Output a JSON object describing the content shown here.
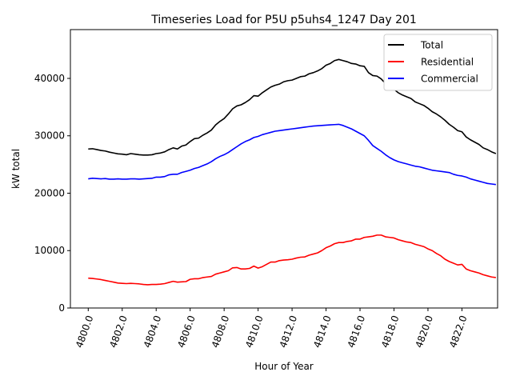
{
  "chart_data": {
    "type": "line",
    "title": "Timeseries Load for P5U p5uhs4_1247  Day 201",
    "xlabel": "Hour of Year",
    "ylabel": "kW total",
    "xlim": [
      4798.95,
      4824.1
    ],
    "ylim": [
      0,
      48500
    ],
    "x_ticks": [
      4800,
      4802,
      4804,
      4806,
      4808,
      4810,
      4812,
      4814,
      4816,
      4818,
      4820,
      4822
    ],
    "x_tick_labels": [
      "4800.0",
      "4802.0",
      "4804.0",
      "4806.0",
      "4808.0",
      "4810.0",
      "4812.0",
      "4814.0",
      "4816.0",
      "4818.0",
      "4820.0",
      "4822.0"
    ],
    "y_ticks": [
      0,
      10000,
      20000,
      30000,
      40000
    ],
    "y_tick_labels": [
      "0",
      "10000",
      "20000",
      "30000",
      "40000"
    ],
    "legend_position": "top-right",
    "x_start": 4800,
    "x_step": 0.25,
    "series": [
      {
        "name": "Total",
        "color": "#000000",
        "values": [
          27700,
          27750,
          27600,
          27450,
          27350,
          27150,
          27000,
          26850,
          26800,
          26700,
          26900,
          26800,
          26700,
          26650,
          26650,
          26700,
          26900,
          27000,
          27200,
          27600,
          27900,
          27700,
          28200,
          28400,
          29000,
          29500,
          29600,
          30100,
          30500,
          31000,
          31900,
          32500,
          33000,
          33800,
          34700,
          35200,
          35400,
          35800,
          36300,
          37000,
          36900,
          37500,
          38000,
          38500,
          38800,
          39000,
          39400,
          39600,
          39700,
          40000,
          40300,
          40400,
          40800,
          41000,
          41300,
          41700,
          42300,
          42600,
          43100,
          43300,
          43100,
          42900,
          42600,
          42500,
          42200,
          42100,
          41000,
          40500,
          40400,
          39900,
          39100,
          38500,
          38100,
          37500,
          37100,
          36800,
          36500,
          35900,
          35600,
          35300,
          34800,
          34200,
          33800,
          33300,
          32700,
          32000,
          31500,
          30900,
          30700,
          29800,
          29300,
          28900,
          28500,
          27900,
          27600,
          27200,
          26900
        ]
      },
      {
        "name": "Residential",
        "color": "#ff0000",
        "values": [
          5200,
          5150,
          5050,
          4950,
          4800,
          4650,
          4500,
          4350,
          4300,
          4250,
          4300,
          4250,
          4200,
          4100,
          4050,
          4100,
          4100,
          4150,
          4250,
          4450,
          4650,
          4500,
          4550,
          4600,
          5000,
          5100,
          5100,
          5300,
          5400,
          5500,
          5900,
          6100,
          6300,
          6500,
          7000,
          7050,
          6800,
          6800,
          6900,
          7300,
          6950,
          7200,
          7600,
          8000,
          8000,
          8250,
          8350,
          8400,
          8500,
          8700,
          8850,
          8900,
          9200,
          9400,
          9600,
          10000,
          10500,
          10800,
          11200,
          11400,
          11400,
          11600,
          11700,
          12000,
          12000,
          12300,
          12400,
          12500,
          12700,
          12700,
          12400,
          12300,
          12200,
          11900,
          11700,
          11500,
          11400,
          11100,
          10900,
          10700,
          10300,
          10000,
          9500,
          9100,
          8500,
          8100,
          7800,
          7500,
          7600,
          6800,
          6500,
          6300,
          6100,
          5800,
          5600,
          5400,
          5300
        ]
      },
      {
        "name": "Commercial",
        "color": "#0000ff",
        "values": [
          22500,
          22600,
          22550,
          22500,
          22550,
          22450,
          22450,
          22500,
          22450,
          22450,
          22500,
          22500,
          22450,
          22500,
          22550,
          22600,
          22800,
          22800,
          22900,
          23200,
          23300,
          23300,
          23600,
          23800,
          24000,
          24300,
          24500,
          24800,
          25100,
          25500,
          26000,
          26400,
          26700,
          27100,
          27600,
          28100,
          28600,
          29000,
          29300,
          29700,
          29900,
          30200,
          30400,
          30600,
          30800,
          30900,
          31000,
          31100,
          31200,
          31300,
          31400,
          31500,
          31600,
          31700,
          31750,
          31800,
          31850,
          31900,
          31950,
          32000,
          31800,
          31500,
          31200,
          30800,
          30400,
          30000,
          29200,
          28300,
          27800,
          27300,
          26700,
          26200,
          25800,
          25500,
          25300,
          25100,
          24900,
          24700,
          24600,
          24400,
          24200,
          24000,
          23900,
          23800,
          23700,
          23600,
          23300,
          23100,
          23000,
          22800,
          22500,
          22300,
          22100,
          21900,
          21700,
          21600,
          21500
        ]
      }
    ]
  }
}
